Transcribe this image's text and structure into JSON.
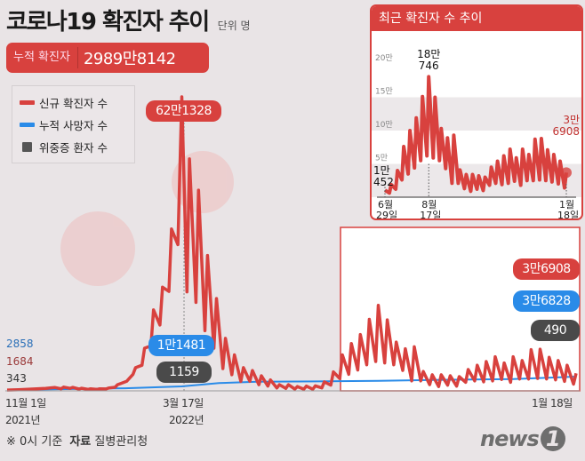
{
  "header": {
    "title": "코로나19 확진자 추이",
    "unit": "단위 명"
  },
  "total": {
    "label": "누적 확진자",
    "value": "2989만8142"
  },
  "legend": [
    {
      "label": "신규 확진자 수",
      "color": "#d8413e"
    },
    {
      "label": "누적 사망자 수",
      "color": "#2a8be8"
    },
    {
      "label": "위중증 환자 수",
      "color": "#555555"
    }
  ],
  "annotations": {
    "start": {
      "deaths": "2858",
      "cases": "1684",
      "critical": "343"
    },
    "peak": {
      "cases": "62만1328",
      "deaths": "1만1481",
      "critical": "1159"
    },
    "latest": {
      "cases": "3만6908",
      "deaths": "3만6828",
      "critical": "490"
    }
  },
  "x_labels": {
    "start_date": "11월 1일",
    "start_year": "2021년",
    "peak_date": "3월 17일",
    "peak_year": "2022년",
    "end_date": "1월 18일"
  },
  "footer": {
    "note": "※ 0시 기준",
    "source_label": "자료",
    "source": "질병관리청"
  },
  "logo": "news1",
  "chart_data": [
    {
      "type": "line",
      "title": "",
      "x_range": [
        "2021-11-01",
        "2023-01-18"
      ],
      "series": [
        {
          "name": "신규 확진자 수",
          "color": "#d8413e",
          "points": [
            [
              "2021-11-01",
              1684
            ],
            [
              "2021-11-10",
              2400
            ],
            [
              "2021-11-17",
              3200
            ],
            [
              "2021-11-24",
              4100
            ],
            [
              "2021-12-01",
              5100
            ],
            [
              "2021-12-08",
              7100
            ],
            [
              "2021-12-13",
              4300
            ],
            [
              "2021-12-15",
              7800
            ],
            [
              "2021-12-20",
              5300
            ],
            [
              "2021-12-22",
              7400
            ],
            [
              "2021-12-27",
              3800
            ],
            [
              "2021-12-29",
              5400
            ],
            [
              "2022-01-03",
              3100
            ],
            [
              "2022-01-05",
              4400
            ],
            [
              "2022-01-10",
              3000
            ],
            [
              "2022-01-12",
              4400
            ],
            [
              "2022-01-17",
              4000
            ],
            [
              "2022-01-19",
              5800
            ],
            [
              "2022-01-24",
              7500
            ],
            [
              "2022-01-26",
              13000
            ],
            [
              "2022-01-31",
              18000
            ],
            [
              "2022-02-02",
              20000
            ],
            [
              "2022-02-07",
              35000
            ],
            [
              "2022-02-09",
              49000
            ],
            [
              "2022-02-14",
              54000
            ],
            [
              "2022-02-16",
              90000
            ],
            [
              "2022-02-21",
              95000
            ],
            [
              "2022-02-23",
              171000
            ],
            [
              "2022-02-28",
              139000
            ],
            [
              "2022-03-02",
              219000
            ],
            [
              "2022-03-07",
              210000
            ],
            [
              "2022-03-09",
              342000
            ],
            [
              "2022-03-14",
              309000
            ],
            [
              "2022-03-17",
              621328
            ],
            [
              "2022-03-21",
              209000
            ],
            [
              "2022-03-23",
              490000
            ],
            [
              "2022-03-28",
              187000
            ],
            [
              "2022-03-30",
              424000
            ],
            [
              "2022-04-04",
              127000
            ],
            [
              "2022-04-06",
              286000
            ],
            [
              "2022-04-11",
              90000
            ],
            [
              "2022-04-13",
              195000
            ],
            [
              "2022-04-18",
              47000
            ],
            [
              "2022-04-20",
              111000
            ],
            [
              "2022-04-25",
              34000
            ],
            [
              "2022-04-27",
              76000
            ],
            [
              "2022-05-02",
              20000
            ],
            [
              "2022-05-04",
              49000
            ],
            [
              "2022-05-09",
              20000
            ],
            [
              "2022-05-11",
              43000
            ],
            [
              "2022-05-16",
              13000
            ],
            [
              "2022-05-18",
              32000
            ],
            [
              "2022-05-23",
              9900
            ],
            [
              "2022-05-25",
              23000
            ],
            [
              "2022-05-30",
              6000
            ],
            [
              "2022-06-01",
              13000
            ],
            [
              "2022-06-06",
              5000
            ],
            [
              "2022-06-08",
              13000
            ],
            [
              "2022-06-13",
              3800
            ],
            [
              "2022-06-15",
              9000
            ],
            [
              "2022-06-20",
              3500
            ],
            [
              "2022-06-22",
              9900
            ],
            [
              "2022-06-27",
              3400
            ],
            [
              "2022-06-29",
              10452
            ],
            [
              "2022-07-04",
              6200
            ],
            [
              "2022-07-06",
              19000
            ],
            [
              "2022-07-11",
              12000
            ],
            [
              "2022-07-13",
              40000
            ],
            [
              "2022-07-18",
              26000
            ],
            [
              "2022-07-20",
              76000
            ],
            [
              "2022-07-25",
              35000
            ],
            [
              "2022-07-27",
              100000
            ],
            [
              "2022-08-01",
              44000
            ],
            [
              "2022-08-03",
              119000
            ],
            [
              "2022-08-08",
              55000
            ],
            [
              "2022-08-10",
              151000
            ],
            [
              "2022-08-15",
              62000
            ],
            [
              "2022-08-17",
              180746
            ],
            [
              "2022-08-22",
              59000
            ],
            [
              "2022-08-24",
              150000
            ],
            [
              "2022-08-29",
              55000
            ],
            [
              "2022-08-31",
              103000
            ],
            [
              "2022-09-05",
              43000
            ],
            [
              "2022-09-07",
              89000
            ],
            [
              "2022-09-12",
              21000
            ],
            [
              "2022-09-14",
              93000
            ],
            [
              "2022-09-19",
              21000
            ],
            [
              "2022-09-21",
              41000
            ],
            [
              "2022-09-26",
              13000
            ],
            [
              "2022-09-28",
              34000
            ],
            [
              "2022-10-03",
              9000
            ],
            [
              "2022-10-05",
              34000
            ],
            [
              "2022-10-10",
              12000
            ],
            [
              "2022-10-12",
              32000
            ],
            [
              "2022-10-17",
              10000
            ],
            [
              "2022-10-19",
              30000
            ],
            [
              "2022-10-24",
              18000
            ],
            [
              "2022-10-26",
              45000
            ],
            [
              "2022-10-31",
              21000
            ],
            [
              "2022-11-02",
              54000
            ],
            [
              "2022-11-07",
              19000
            ],
            [
              "2022-11-09",
              62000
            ],
            [
              "2022-11-14",
              21000
            ],
            [
              "2022-11-16",
              72000
            ],
            [
              "2022-11-21",
              24000
            ],
            [
              "2022-11-23",
              59000
            ],
            [
              "2022-11-28",
              18000
            ],
            [
              "2022-11-30",
              72000
            ],
            [
              "2022-12-05",
              25000
            ],
            [
              "2022-12-07",
              64000
            ],
            [
              "2022-12-12",
              25000
            ],
            [
              "2022-12-14",
              87000
            ],
            [
              "2022-12-19",
              26000
            ],
            [
              "2022-12-21",
              88000
            ],
            [
              "2022-12-26",
              25000
            ],
            [
              "2022-12-28",
              71000
            ],
            [
              "2023-01-02",
              23000
            ],
            [
              "2023-01-04",
              64000
            ],
            [
              "2023-01-09",
              20000
            ],
            [
              "2023-01-11",
              54000
            ],
            [
              "2023-01-16",
              14000
            ],
            [
              "2023-01-18",
              36908
            ]
          ]
        },
        {
          "name": "누적 사망자 수",
          "color": "#2a8be8",
          "points": [
            [
              "2021-11-01",
              2858
            ],
            [
              "2021-12-01",
              3658
            ],
            [
              "2022-01-01",
              5625
            ],
            [
              "2022-02-01",
              6772
            ],
            [
              "2022-03-17",
              11481
            ],
            [
              "2022-04-15",
              20000
            ],
            [
              "2022-05-15",
              23600
            ],
            [
              "2022-06-29",
              24500
            ],
            [
              "2022-08-17",
              25800
            ],
            [
              "2022-09-30",
              28300
            ],
            [
              "2022-11-30",
              30500
            ],
            [
              "2023-01-18",
              36828
            ]
          ]
        }
      ]
    },
    {
      "type": "line",
      "title": "최근 확진자 수 추이",
      "x_range": [
        "2022-06-29",
        "2023-01-18"
      ],
      "ylim": [
        0,
        200000
      ],
      "y_ticks": [
        "5만",
        "10만",
        "15만",
        "20만"
      ],
      "x_ticks": [
        {
          "m": "6월",
          "d": "29일"
        },
        {
          "m": "8월",
          "d": "17일"
        },
        {
          "m": "1월",
          "d": "18일"
        }
      ],
      "labels": {
        "start": "1만\n452",
        "peak": "18만\n746",
        "end": "3만\n6908"
      }
    }
  ]
}
